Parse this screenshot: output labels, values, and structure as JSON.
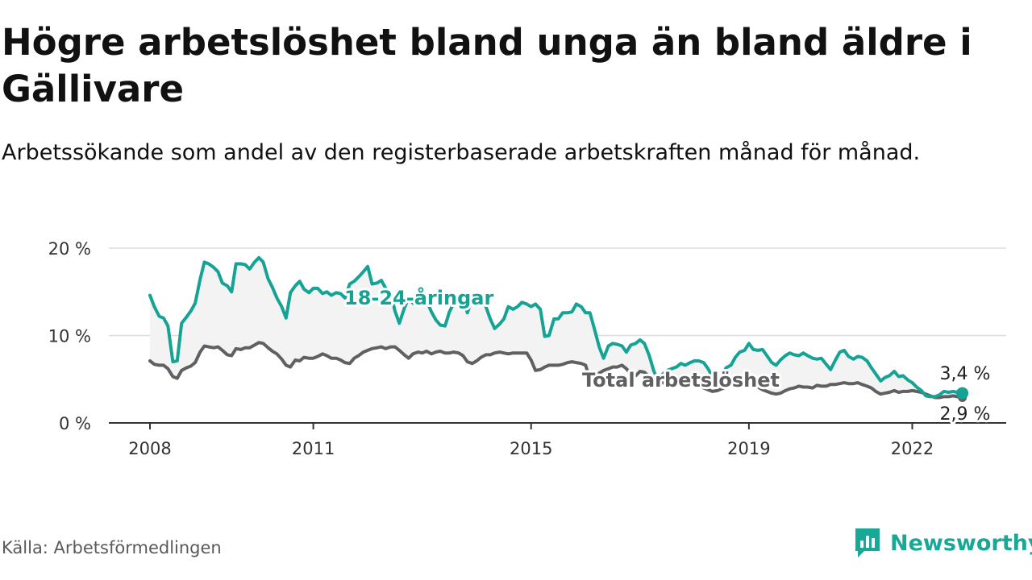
{
  "title": "Högre arbetslöshet bland unga än bland äldre i Gällivare",
  "subtitle": "Arbetssökande som andel av den registerbaserade arbetskraften månad för månad.",
  "source": "Källa: Arbetsförmedlingen",
  "brand": {
    "name": "Newsworthy",
    "icon": "newsworthy-logo-icon",
    "color": "#1aa896"
  },
  "colors": {
    "youth": "#14a394",
    "total": "#606063",
    "band": "#f3f3f3",
    "grid": "#dddddd",
    "axis": "#333333"
  },
  "chart_data": {
    "type": "line",
    "title": "Högre arbetslöshet bland unga än bland äldre i Gällivare",
    "xlabel": "",
    "ylabel": "",
    "ylim": [
      0,
      20
    ],
    "xlim": [
      2008.0,
      2023.0
    ],
    "y_ticks": [
      0,
      10,
      20
    ],
    "y_tick_labels": [
      "0 %",
      "10 %",
      "20 %"
    ],
    "x_ticks": [
      2008,
      2011,
      2015,
      2019,
      2022
    ],
    "x_tick_labels": [
      "2008",
      "2011",
      "2015",
      "2019",
      "2022"
    ],
    "grid": true,
    "series": [
      {
        "name": "18-24-åringar",
        "label": "18-24-åringar",
        "end_label": "3,4 %",
        "x": [
          2008.0,
          2008.08,
          2008.17,
          2008.25,
          2008.33,
          2008.42,
          2008.5,
          2008.58,
          2008.67,
          2008.75,
          2008.83,
          2008.92,
          2009.0,
          2009.08,
          2009.17,
          2009.25,
          2009.33,
          2009.42,
          2009.5,
          2009.58,
          2009.67,
          2009.75,
          2009.83,
          2009.92,
          2010.0,
          2010.08,
          2010.17,
          2010.25,
          2010.33,
          2010.42,
          2010.5,
          2010.58,
          2010.67,
          2010.75,
          2010.83,
          2010.92,
          2011.0,
          2011.08,
          2011.17,
          2011.25,
          2011.33,
          2011.42,
          2011.5,
          2011.58,
          2011.67,
          2011.75,
          2011.83,
          2011.92,
          2012.0,
          2012.08,
          2012.17,
          2012.25,
          2012.33,
          2012.42,
          2012.5,
          2012.58,
          2012.67,
          2012.75,
          2012.83,
          2012.92,
          2013.0,
          2013.08,
          2013.17,
          2013.25,
          2013.33,
          2013.42,
          2013.5,
          2013.58,
          2013.67,
          2013.75,
          2013.83,
          2013.92,
          2014.0,
          2014.08,
          2014.17,
          2014.25,
          2014.33,
          2014.42,
          2014.5,
          2014.58,
          2014.67,
          2014.75,
          2014.83,
          2014.92,
          2015.0,
          2015.08,
          2015.17,
          2015.25,
          2015.33,
          2015.42,
          2015.5,
          2015.58,
          2015.67,
          2015.75,
          2015.83,
          2015.92,
          2016.0,
          2016.08,
          2016.17,
          2016.25,
          2016.33,
          2016.42,
          2016.5,
          2016.58,
          2016.67,
          2016.75,
          2016.83,
          2016.92,
          2017.0,
          2017.08,
          2017.17,
          2017.25,
          2017.33,
          2017.42,
          2017.5,
          2017.58,
          2017.67,
          2017.75,
          2017.83,
          2017.92,
          2018.0,
          2018.08,
          2018.17,
          2018.25,
          2018.33,
          2018.42,
          2018.5,
          2018.58,
          2018.67,
          2018.75,
          2018.83,
          2018.92,
          2019.0,
          2019.08,
          2019.17,
          2019.25,
          2019.33,
          2019.42,
          2019.5,
          2019.58,
          2019.67,
          2019.75,
          2019.83,
          2019.92,
          2020.0,
          2020.08,
          2020.17,
          2020.25,
          2020.33,
          2020.42,
          2020.5,
          2020.58,
          2020.67,
          2020.75,
          2020.83,
          2020.92,
          2021.0,
          2021.08,
          2021.17,
          2021.25,
          2021.33,
          2021.42,
          2021.5,
          2021.58,
          2021.67,
          2021.75,
          2021.83,
          2021.92,
          2022.0,
          2022.08,
          2022.17,
          2022.25,
          2022.33,
          2022.42,
          2022.5,
          2022.58,
          2022.67,
          2022.75,
          2022.83,
          2022.92
        ],
        "values": [
          14.6,
          13.3,
          12.2,
          12.0,
          11.1,
          7.0,
          7.1,
          11.4,
          12.1,
          12.8,
          13.7,
          16.4,
          18.4,
          18.2,
          17.8,
          17.3,
          16.0,
          15.7,
          15.0,
          18.2,
          18.2,
          18.1,
          17.6,
          18.4,
          18.9,
          18.4,
          16.5,
          15.5,
          14.3,
          13.3,
          12.0,
          14.9,
          15.7,
          16.2,
          15.3,
          14.9,
          15.4,
          15.4,
          14.8,
          15.0,
          14.6,
          14.9,
          14.8,
          14.3,
          15.9,
          16.2,
          16.7,
          17.3,
          17.9,
          15.9,
          16.0,
          16.3,
          15.4,
          14.9,
          12.8,
          11.4,
          13.1,
          14.3,
          13.7,
          15.0,
          14.4,
          14.0,
          12.7,
          11.8,
          11.2,
          11.1,
          12.7,
          13.7,
          14.1,
          14.3,
          12.6,
          14.2,
          14.7,
          14.4,
          13.3,
          11.9,
          10.8,
          11.3,
          11.9,
          13.3,
          13.0,
          13.3,
          13.8,
          13.6,
          13.3,
          13.6,
          13.0,
          9.9,
          10.0,
          11.9,
          11.9,
          12.6,
          12.6,
          12.7,
          13.6,
          13.3,
          12.6,
          12.6,
          10.6,
          8.7,
          7.4,
          8.8,
          9.1,
          9.0,
          8.8,
          8.1,
          8.9,
          9.1,
          9.5,
          9.1,
          7.7,
          6.0,
          4.8,
          5.6,
          6.0,
          6.2,
          6.4,
          6.8,
          6.6,
          6.9,
          7.1,
          7.1,
          6.9,
          6.2,
          5.3,
          5.1,
          4.9,
          6.3,
          6.6,
          7.5,
          8.1,
          8.3,
          9.1,
          8.4,
          8.3,
          8.4,
          7.7,
          6.9,
          6.6,
          7.2,
          7.7,
          8.0,
          7.8,
          7.7,
          8.0,
          7.7,
          7.4,
          7.3,
          7.4,
          6.7,
          6.1,
          7.1,
          8.1,
          8.3,
          7.6,
          7.3,
          7.6,
          7.5,
          7.1,
          6.3,
          5.6,
          4.8,
          5.2,
          5.4,
          5.9,
          5.3,
          5.4,
          4.9,
          4.6,
          4.1,
          3.7,
          3.1,
          3.0,
          3.0,
          3.2,
          3.6,
          3.5,
          3.6,
          3.5,
          3.4
        ]
      },
      {
        "name": "Total arbetslöshet",
        "label": "Total arbetslöshet",
        "end_label": "2,9 %",
        "x": [
          2008.0,
          2008.08,
          2008.17,
          2008.25,
          2008.33,
          2008.42,
          2008.5,
          2008.58,
          2008.67,
          2008.75,
          2008.83,
          2008.92,
          2009.0,
          2009.08,
          2009.17,
          2009.25,
          2009.33,
          2009.42,
          2009.5,
          2009.58,
          2009.67,
          2009.75,
          2009.83,
          2009.92,
          2010.0,
          2010.08,
          2010.17,
          2010.25,
          2010.33,
          2010.42,
          2010.5,
          2010.58,
          2010.67,
          2010.75,
          2010.83,
          2010.92,
          2011.0,
          2011.08,
          2011.17,
          2011.25,
          2011.33,
          2011.42,
          2011.5,
          2011.58,
          2011.67,
          2011.75,
          2011.83,
          2011.92,
          2012.0,
          2012.08,
          2012.17,
          2012.25,
          2012.33,
          2012.42,
          2012.5,
          2012.58,
          2012.67,
          2012.75,
          2012.83,
          2012.92,
          2013.0,
          2013.08,
          2013.17,
          2013.25,
          2013.33,
          2013.42,
          2013.5,
          2013.58,
          2013.67,
          2013.75,
          2013.83,
          2013.92,
          2014.0,
          2014.08,
          2014.17,
          2014.25,
          2014.33,
          2014.42,
          2014.5,
          2014.58,
          2014.67,
          2014.75,
          2014.83,
          2014.92,
          2015.0,
          2015.08,
          2015.17,
          2015.25,
          2015.33,
          2015.42,
          2015.5,
          2015.58,
          2015.67,
          2015.75,
          2015.83,
          2015.92,
          2016.0,
          2016.08,
          2016.17,
          2016.25,
          2016.33,
          2016.42,
          2016.5,
          2016.58,
          2016.67,
          2016.75,
          2016.83,
          2016.92,
          2017.0,
          2017.08,
          2017.17,
          2017.25,
          2017.33,
          2017.42,
          2017.5,
          2017.58,
          2017.67,
          2017.75,
          2017.83,
          2017.92,
          2018.0,
          2018.08,
          2018.17,
          2018.25,
          2018.33,
          2018.42,
          2018.5,
          2018.58,
          2018.67,
          2018.75,
          2018.83,
          2018.92,
          2019.0,
          2019.08,
          2019.17,
          2019.25,
          2019.33,
          2019.42,
          2019.5,
          2019.58,
          2019.67,
          2019.75,
          2019.83,
          2019.92,
          2020.0,
          2020.08,
          2020.17,
          2020.25,
          2020.33,
          2020.42,
          2020.5,
          2020.58,
          2020.67,
          2020.75,
          2020.83,
          2020.92,
          2021.0,
          2021.08,
          2021.17,
          2021.25,
          2021.33,
          2021.42,
          2021.5,
          2021.58,
          2021.67,
          2021.75,
          2021.83,
          2021.92,
          2022.0,
          2022.08,
          2022.17,
          2022.25,
          2022.33,
          2022.42,
          2022.5,
          2022.58,
          2022.67,
          2022.75,
          2022.83,
          2022.92
        ],
        "values": [
          7.1,
          6.7,
          6.6,
          6.6,
          6.2,
          5.3,
          5.1,
          6.0,
          6.3,
          6.5,
          6.9,
          8.1,
          8.8,
          8.7,
          8.6,
          8.7,
          8.3,
          7.8,
          7.7,
          8.5,
          8.4,
          8.6,
          8.6,
          8.9,
          9.2,
          9.1,
          8.6,
          8.2,
          7.9,
          7.3,
          6.6,
          6.4,
          7.2,
          7.1,
          7.5,
          7.4,
          7.4,
          7.6,
          7.9,
          7.7,
          7.4,
          7.4,
          7.2,
          6.9,
          6.8,
          7.4,
          7.7,
          8.1,
          8.3,
          8.5,
          8.6,
          8.7,
          8.5,
          8.7,
          8.7,
          8.3,
          7.8,
          7.4,
          7.9,
          8.1,
          8.0,
          8.2,
          7.9,
          8.1,
          8.2,
          8.0,
          8.0,
          8.1,
          8.0,
          7.7,
          7.0,
          6.8,
          7.1,
          7.5,
          7.8,
          7.8,
          8.0,
          8.1,
          8.0,
          7.9,
          8.0,
          8.0,
          8.0,
          8.0,
          7.2,
          6.0,
          6.1,
          6.4,
          6.6,
          6.6,
          6.6,
          6.7,
          6.9,
          7.0,
          6.9,
          6.8,
          6.6,
          5.0,
          5.0,
          5.7,
          6.0,
          6.2,
          6.4,
          6.4,
          6.6,
          6.2,
          5.6,
          5.4,
          5.9,
          5.8,
          5.3,
          5.0,
          4.8,
          4.6,
          4.6,
          4.5,
          4.3,
          4.4,
          4.5,
          4.7,
          4.6,
          4.3,
          4.0,
          3.8,
          3.6,
          3.7,
          3.9,
          4.1,
          4.3,
          4.4,
          4.5,
          4.4,
          4.3,
          4.3,
          4.1,
          3.8,
          3.6,
          3.4,
          3.3,
          3.4,
          3.7,
          3.9,
          4.0,
          4.2,
          4.1,
          4.1,
          4.0,
          4.3,
          4.2,
          4.2,
          4.4,
          4.4,
          4.5,
          4.6,
          4.5,
          4.5,
          4.6,
          4.4,
          4.2,
          4.0,
          3.6,
          3.3,
          3.4,
          3.5,
          3.7,
          3.5,
          3.6,
          3.6,
          3.7,
          3.6,
          3.5,
          3.3,
          3.1,
          2.9,
          2.9,
          3.0,
          3.0,
          3.1,
          3.0,
          2.9
        ]
      }
    ]
  }
}
